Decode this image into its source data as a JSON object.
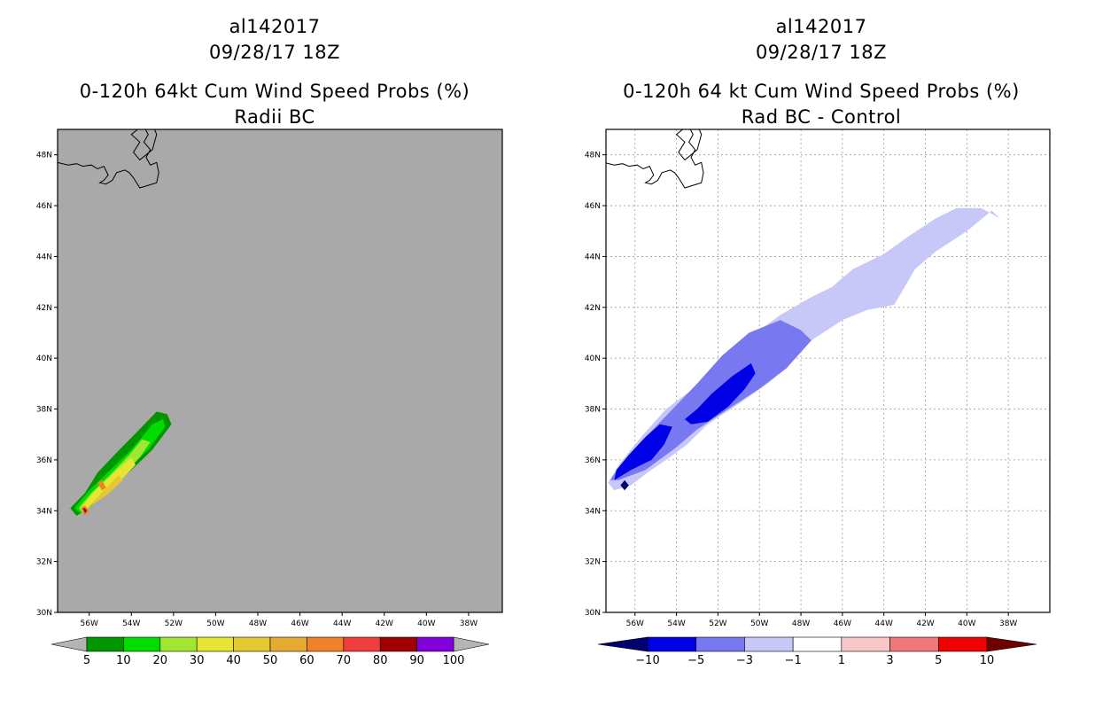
{
  "chart_data": [
    {
      "type": "contour_map",
      "title_lines": [
        "al142017",
        "09/28/17 18Z",
        "0-120h 64kt Cum Wind Speed Probs (%)",
        "Radii BC"
      ],
      "x_ticks": [
        "56W",
        "54W",
        "52W",
        "50W",
        "48W",
        "46W",
        "44W",
        "42W",
        "40W",
        "38W"
      ],
      "y_ticks": [
        "30N",
        "32N",
        "34N",
        "36N",
        "38N",
        "40N",
        "42N",
        "44N",
        "46N",
        "48N"
      ],
      "xlim_deg_w": [
        57.5,
        36.4
      ],
      "ylim_deg_n": [
        30,
        49
      ],
      "grid": false,
      "background_color": "#a9a9a9",
      "colorbar": {
        "levels": [
          "5",
          "10",
          "20",
          "30",
          "40",
          "50",
          "60",
          "70",
          "80",
          "90",
          "100"
        ],
        "colors": [
          "#009600",
          "#00dc00",
          "#a0e632",
          "#e6e632",
          "#e6c832",
          "#e6aa32",
          "#f08228",
          "#f03c3c",
          "#a00000",
          "#8200dc"
        ],
        "under_color": "#b4b4b4",
        "over_color": "#b4b4b4"
      },
      "contours": [
        {
          "level": 5,
          "color": "#009600",
          "polygon": [
            [
              56.6,
              33.8
            ],
            [
              56.9,
              34.1
            ],
            [
              56.2,
              34.7
            ],
            [
              55.6,
              35.5
            ],
            [
              54.8,
              36.2
            ],
            [
              53.5,
              37.3
            ],
            [
              52.8,
              37.9
            ],
            [
              52.3,
              37.8
            ],
            [
              52.1,
              37.4
            ],
            [
              53.0,
              36.4
            ],
            [
              54.0,
              35.6
            ],
            [
              55.2,
              34.8
            ],
            [
              56.0,
              34.1
            ]
          ]
        },
        {
          "level": 10,
          "color": "#00dc00",
          "polygon": [
            [
              56.4,
              33.9
            ],
            [
              56.7,
              34.1
            ],
            [
              56.0,
              34.8
            ],
            [
              55.0,
              35.6
            ],
            [
              54.0,
              36.4
            ],
            [
              53.0,
              37.4
            ],
            [
              52.5,
              37.6
            ],
            [
              52.4,
              37.3
            ],
            [
              53.2,
              36.4
            ],
            [
              54.2,
              35.6
            ],
            [
              55.3,
              34.8
            ],
            [
              56.1,
              34.1
            ]
          ]
        },
        {
          "level": 20,
          "color": "#a0e632",
          "polygon": [
            [
              56.3,
              33.9
            ],
            [
              56.5,
              34.1
            ],
            [
              55.9,
              34.7
            ],
            [
              54.9,
              35.5
            ],
            [
              54.1,
              36.2
            ],
            [
              53.5,
              36.8
            ],
            [
              53.1,
              36.7
            ],
            [
              53.6,
              36.1
            ],
            [
              54.4,
              35.4
            ],
            [
              55.3,
              34.8
            ],
            [
              56.0,
              34.1
            ]
          ]
        },
        {
          "level": 30,
          "color": "#e6e632",
          "polygon": [
            [
              56.2,
              34.0
            ],
            [
              56.4,
              34.1
            ],
            [
              55.7,
              34.8
            ],
            [
              54.8,
              35.5
            ],
            [
              54.0,
              36.1
            ],
            [
              53.8,
              35.8
            ],
            [
              54.5,
              35.2
            ],
            [
              55.4,
              34.6
            ]
          ]
        },
        {
          "level": 40,
          "color": "#e6c832",
          "polygon": [
            [
              56.1,
              34.1
            ],
            [
              55.3,
              34.8
            ],
            [
              54.6,
              35.4
            ],
            [
              54.4,
              35.2
            ],
            [
              55.2,
              34.6
            ]
          ]
        },
        {
          "level": 60,
          "color": "#f08228",
          "polygon": [
            [
              56.2,
              33.8
            ],
            [
              56.4,
              34.1
            ],
            [
              56.2,
              34.2
            ],
            [
              56.0,
              34.0
            ]
          ]
        },
        {
          "level": 60,
          "color": "#f08228",
          "polygon": [
            [
              55.4,
              34.8
            ],
            [
              55.6,
              35.1
            ],
            [
              55.4,
              35.2
            ],
            [
              55.2,
              34.9
            ]
          ]
        },
        {
          "level": 80,
          "color": "#a00000",
          "polygon": [
            [
              56.2,
              33.9
            ],
            [
              56.3,
              34.1
            ],
            [
              56.2,
              34.1
            ],
            [
              56.1,
              34.0
            ]
          ]
        },
        {
          "level": 90,
          "color": "#8200dc",
          "polygon": [
            [
              56.2,
              33.95
            ],
            [
              56.25,
              34.05
            ],
            [
              56.15,
              34.05
            ]
          ]
        }
      ]
    },
    {
      "type": "contour_map",
      "title_lines": [
        "al142017",
        "09/28/17 18Z",
        "0-120h 64 kt Cum Wind Speed Probs (%)",
        "Rad BC - Control"
      ],
      "x_ticks": [
        "56W",
        "54W",
        "52W",
        "50W",
        "48W",
        "46W",
        "44W",
        "42W",
        "40W",
        "38W"
      ],
      "y_ticks": [
        "30N",
        "32N",
        "34N",
        "36N",
        "38N",
        "40N",
        "42N",
        "44N",
        "46N",
        "48N"
      ],
      "xlim_deg_w": [
        57.4,
        36.0
      ],
      "ylim_deg_n": [
        30,
        49
      ],
      "grid": true,
      "background_color": "#ffffff",
      "colorbar": {
        "levels": [
          "-10",
          "-5",
          "-3",
          "-1",
          "1",
          "3",
          "5",
          "10"
        ],
        "colors": [
          "#0000e6",
          "#7878f0",
          "#c8c8f8",
          "#ffffff",
          "#f8c8c8",
          "#f07878",
          "#f00000"
        ],
        "under_color": "#00006e",
        "over_color": "#6e0000"
      },
      "contours": [
        {
          "level": -1,
          "color": "#c8c8f8",
          "polygon": [
            [
              57.0,
              34.8
            ],
            [
              56.2,
              35.0
            ],
            [
              55.4,
              35.5
            ],
            [
              54.5,
              36.0
            ],
            [
              53.5,
              36.6
            ],
            [
              52.5,
              37.4
            ],
            [
              51.0,
              38.2
            ],
            [
              49.6,
              39.0
            ],
            [
              48.5,
              39.8
            ],
            [
              47.5,
              40.7
            ],
            [
              46.0,
              41.5
            ],
            [
              44.8,
              41.9
            ],
            [
              43.5,
              42.1
            ],
            [
              42.5,
              43.5
            ],
            [
              41.5,
              44.2
            ],
            [
              40.0,
              45.0
            ],
            [
              38.8,
              45.8
            ],
            [
              38.4,
              45.5
            ],
            [
              39.3,
              45.9
            ],
            [
              40.5,
              45.9
            ],
            [
              41.5,
              45.5
            ],
            [
              42.8,
              44.8
            ],
            [
              44.0,
              44.1
            ],
            [
              45.5,
              43.5
            ],
            [
              46.5,
              42.8
            ],
            [
              47.5,
              42.4
            ],
            [
              49.0,
              41.7
            ],
            [
              50.5,
              40.8
            ],
            [
              52.0,
              39.8
            ],
            [
              53.2,
              38.8
            ],
            [
              54.5,
              38.0
            ],
            [
              55.6,
              37.0
            ],
            [
              56.7,
              35.9
            ],
            [
              57.3,
              35.1
            ]
          ]
        },
        {
          "level": -3,
          "color": "#7878f0",
          "polygon": [
            [
              56.8,
              35.2
            ],
            [
              55.5,
              35.6
            ],
            [
              54.0,
              36.5
            ],
            [
              53.0,
              37.2
            ],
            [
              51.5,
              38.0
            ],
            [
              50.0,
              38.8
            ],
            [
              48.7,
              39.6
            ],
            [
              47.5,
              40.7
            ],
            [
              48.0,
              41.1
            ],
            [
              49.0,
              41.5
            ],
            [
              50.5,
              41.0
            ],
            [
              51.8,
              40.1
            ],
            [
              53.0,
              39.0
            ],
            [
              54.3,
              37.9
            ],
            [
              55.6,
              36.8
            ],
            [
              56.6,
              35.9
            ],
            [
              57.2,
              35.2
            ]
          ]
        },
        {
          "level": -5,
          "color": "#0000e6",
          "polygon": [
            [
              57.0,
              35.2
            ],
            [
              56.2,
              35.6
            ],
            [
              55.2,
              36.0
            ],
            [
              54.6,
              36.6
            ],
            [
              54.2,
              37.3
            ],
            [
              54.8,
              37.4
            ],
            [
              55.5,
              36.9
            ],
            [
              56.3,
              36.2
            ],
            [
              56.9,
              35.6
            ]
          ]
        },
        {
          "level": -5,
          "color": "#0000e6",
          "polygon": [
            [
              53.3,
              37.4
            ],
            [
              52.5,
              37.5
            ],
            [
              51.5,
              38.1
            ],
            [
              50.7,
              38.8
            ],
            [
              50.2,
              39.4
            ],
            [
              50.4,
              39.8
            ],
            [
              51.3,
              39.3
            ],
            [
              52.3,
              38.6
            ],
            [
              53.0,
              38.0
            ],
            [
              53.6,
              37.6
            ]
          ]
        },
        {
          "level": -10,
          "color": "#00006e",
          "polygon": [
            [
              56.5,
              34.8
            ],
            [
              56.7,
              35.0
            ],
            [
              56.5,
              35.2
            ],
            [
              56.3,
              35.0
            ]
          ]
        }
      ]
    }
  ],
  "left_panel": {
    "title1": "al142017",
    "title2": "09/28/17 18Z",
    "title3": "0-120h 64kt Cum Wind Speed Probs (%)",
    "title4": "Radii BC"
  },
  "right_panel": {
    "title1": "al142017",
    "title2": "09/28/17 18Z",
    "title3": "0-120h 64 kt Cum Wind Speed Probs (%)",
    "title4": "Rad BC - Control"
  }
}
